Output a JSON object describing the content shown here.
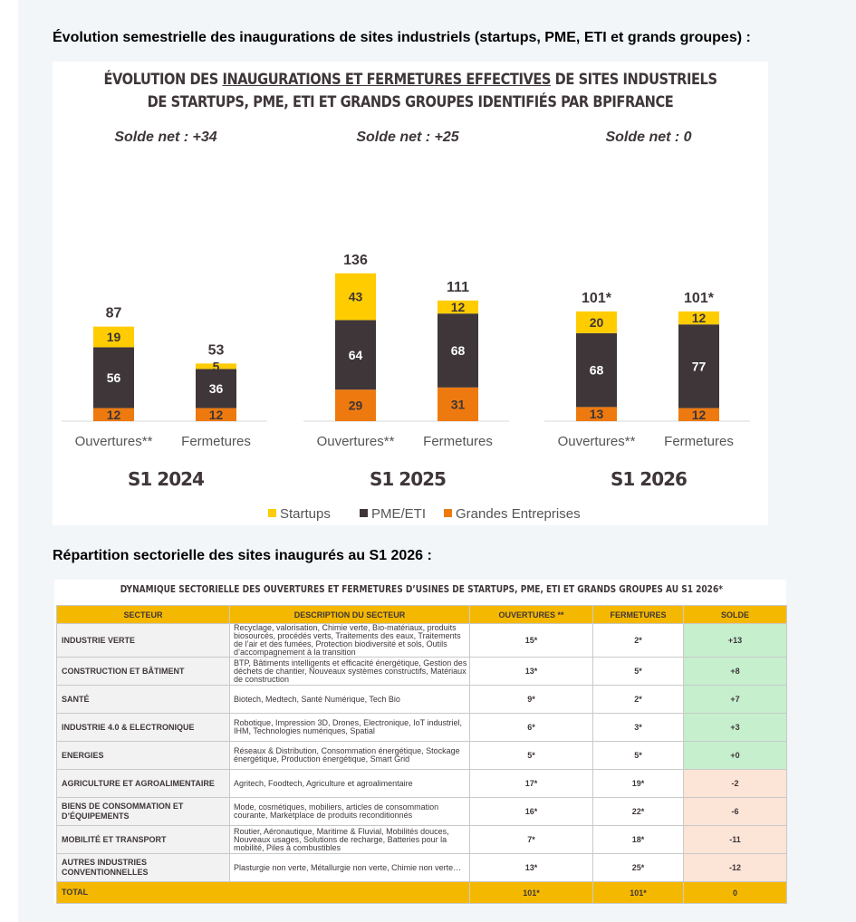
{
  "headings": {
    "chart": "Évolution semestrielle des inaugurations de sites industriels (startups, PME, ETI et grands groupes) :",
    "table": "Répartition sectorielle des sites inaugurés au S1 2026 :"
  },
  "chart_data": {
    "type": "bar",
    "stacked": true,
    "title_line1_pre": "ÉVOLUTION DES ",
    "title_line1_underlined": "INAUGURATIONS ET FERMETURES EFFECTIVES",
    "title_line1_post": " DE SITES INDUSTRIELS",
    "title_line2": "DE STARTUPS, PME, ETI ET GRANDS GROUPES IDENTIFIÉS PAR BPIFRANCE",
    "legend_position": "bottom",
    "grid": false,
    "series": [
      {
        "name": "Startups",
        "color": "#ffcc00"
      },
      {
        "name": "PME/ETI",
        "color": "#3e3638"
      },
      {
        "name": "Grandes Entreprises",
        "color": "#ee7a0f"
      }
    ],
    "groups": [
      {
        "period": "S1 2024",
        "solde": "Solde net : +34",
        "bars": [
          {
            "label": "Ouvertures**",
            "total": "87",
            "values": [
              19,
              56,
              12
            ],
            "labels": [
              "19",
              "56",
              "12"
            ]
          },
          {
            "label": "Fermetures",
            "total": "53",
            "values": [
              5,
              36,
              12
            ],
            "labels": [
              "5",
              "36",
              "12"
            ]
          }
        ]
      },
      {
        "period": "S1 2025",
        "solde": "Solde net : +25",
        "bars": [
          {
            "label": "Ouvertures**",
            "total": "136",
            "values": [
              43,
              64,
              29
            ],
            "labels": [
              "43",
              "64",
              "29"
            ]
          },
          {
            "label": "Fermetures",
            "total": "111",
            "values": [
              12,
              68,
              31
            ],
            "labels": [
              "12",
              "68",
              "31"
            ]
          }
        ]
      },
      {
        "period": "S1 2026",
        "solde": "Solde net : 0",
        "bars": [
          {
            "label": "Ouvertures**",
            "total": "101*",
            "values": [
              20,
              68,
              13
            ],
            "labels": [
              "20",
              "68",
              "13"
            ]
          },
          {
            "label": "Fermetures",
            "total": "101*",
            "values": [
              12,
              77,
              12
            ],
            "labels": [
              "12",
              "77",
              "12"
            ]
          }
        ]
      }
    ]
  },
  "table": {
    "title": "DYNAMIQUE SECTORIELLE DES OUVERTURES ET FERMETURES D’USINES DE STARTUPS, PME, ETI ET GRANDS GROUPES AU S1 2026*",
    "headers": [
      "SECTEUR",
      "DESCRIPTION DU SECTEUR",
      "OUVERTURES **",
      "FERMETURES",
      "SOLDE"
    ],
    "rows": [
      {
        "sector": "INDUSTRIE VERTE",
        "desc": "Recyclage, valorisation, Chimie verte, Bio-matériaux,  produits biosourcés, procédés verts, Traitements des eaux, Traitements de l’air et des fumées, Protection biodiversité et sols, Outils d’accompagnement à la transition",
        "open": "15*",
        "close": "2*",
        "solde": "+13",
        "sign": "pos"
      },
      {
        "sector": "CONSTRUCTION ET BÂTIMENT",
        "desc": "BTP, Bâtiments intelligents et efficacité énergétique, Gestion des déchets de chantier, Nouveaux systèmes constructifs, Matériaux de construction",
        "open": "13*",
        "close": "5*",
        "solde": "+8",
        "sign": "pos"
      },
      {
        "sector": "SANTÉ",
        "desc": "Biotech, Medtech, Santé Numérique, Tech Bio",
        "open": "9*",
        "close": "2*",
        "solde": "+7",
        "sign": "pos"
      },
      {
        "sector": "INDUSTRIE 4.0 & ELECTRONIQUE",
        "desc": "Robotique, Impression 3D, Drones, Electronique,  IoT industriel, IHM, Technologies numériques, Spatial",
        "open": "6*",
        "close": "3*",
        "solde": "+3",
        "sign": "pos"
      },
      {
        "sector": "ENERGIES",
        "desc": "Réseaux & Distribution, Consommation énergétique, Stockage énergétique, Production énergétique, Smart Grid",
        "open": "5*",
        "close": "5*",
        "solde": "+0",
        "sign": "pos"
      },
      {
        "sector": "AGRICULTURE ET AGROALIMENTAIRE",
        "desc": "Agritech, Foodtech, Agriculture et agroalimentaire",
        "open": "17*",
        "close": "19*",
        "solde": "-2",
        "sign": "neg"
      },
      {
        "sector": "BIENS DE CONSOMMATION ET D’ÉQUIPEMENTS",
        "desc": "Mode, cosmétiques, mobiliers, articles de consommation courante, Marketplace de produits reconditionnés",
        "open": "16*",
        "close": "22*",
        "solde": "-6",
        "sign": "neg"
      },
      {
        "sector": "MOBILITÉ ET TRANSPORT",
        "desc": "Routier, Aéronautique, Maritime & Fluvial, Mobilités douces, Nouveaux usages, Solutions de recharge, Batteries pour la mobilité, Piles à combustibles",
        "open": "7*",
        "close": "18*",
        "solde": "-11",
        "sign": "neg"
      },
      {
        "sector": "AUTRES INDUSTRIES CONVENTIONNELLES",
        "desc": "Plasturgie non verte, Métallurgie non verte, Chimie non verte…",
        "open": "13*",
        "close": "25*",
        "solde": "-12",
        "sign": "neg"
      }
    ],
    "total": {
      "label": "TOTAL",
      "open": "101*",
      "close": "101*",
      "solde": "0"
    }
  }
}
